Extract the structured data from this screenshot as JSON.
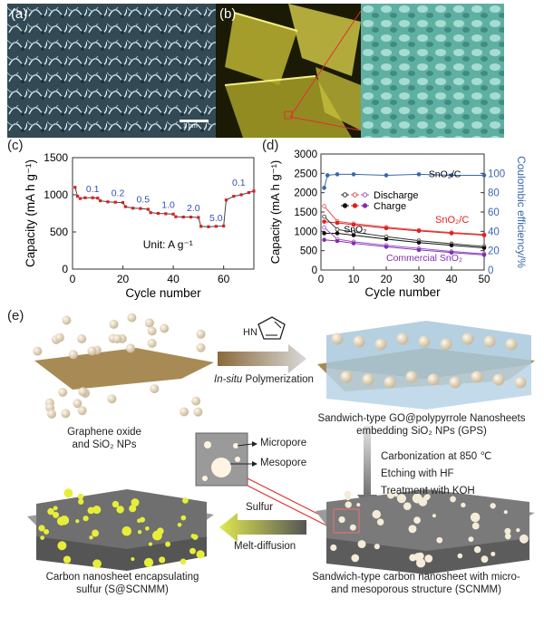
{
  "panels": {
    "a": {
      "label": "(a)",
      "scalebar": "1 μm"
    },
    "b": {
      "label": "(b)"
    },
    "c": {
      "label": "(c)"
    },
    "d": {
      "label": "(d)"
    },
    "e": {
      "label": "(e)"
    }
  },
  "chart_c": {
    "type": "line",
    "xlabel": "Cycle number",
    "ylabel": "Capacity (mA h g⁻¹)",
    "ylim": [
      0,
      1500
    ],
    "yticks": [
      0,
      500,
      1000,
      1500
    ],
    "xlim": [
      0,
      72
    ],
    "xticks": [
      0,
      20,
      40,
      60
    ],
    "unit_note": "Unit: A g⁻¹",
    "rate_labels": [
      "0.1",
      "0.2",
      "0.5",
      "1.0",
      "2.0",
      "5.0",
      "0.1"
    ]
  },
  "chart_d": {
    "type": "line",
    "xlabel": "Cycle number",
    "ylabel": "Capacity (mA h g⁻¹)",
    "y2label": "Coulombic efficiency/%",
    "ylim": [
      0,
      3000
    ],
    "yticks": [
      0,
      500,
      1000,
      1500,
      2000,
      2500,
      3000
    ],
    "y2lim": [
      0,
      120
    ],
    "y2ticks": [
      0,
      20,
      40,
      60,
      80,
      100
    ],
    "xlim": [
      0,
      50
    ],
    "xticks": [
      0,
      10,
      20,
      30,
      40,
      50
    ],
    "legend": [
      "Discharge",
      "Charge"
    ],
    "labels": {
      "sno2c_top": "SnO₂/C",
      "sno2c": "SnO₂/C",
      "sno2": "SnO₂",
      "commercial": "Commercial SnO₂"
    }
  },
  "chart_data": [
    {
      "type": "line",
      "title": "",
      "xlabel": "Cycle number",
      "ylabel": "Capacity (mA h g-1)",
      "ylim": [
        0,
        1500
      ],
      "series": [
        {
          "values": [
            [
              1,
              1100
            ],
            [
              2,
              980
            ],
            [
              3,
              950
            ],
            [
              5,
              960
            ],
            [
              8,
              960
            ],
            [
              10,
              955
            ],
            [
              11,
              920
            ],
            [
              14,
              905
            ],
            [
              17,
              900
            ],
            [
              20,
              895
            ],
            [
              21,
              840
            ],
            [
              24,
              820
            ],
            [
              27,
              815
            ],
            [
              30,
              805
            ],
            [
              31,
              760
            ],
            [
              34,
              750
            ],
            [
              37,
              745
            ],
            [
              40,
              740
            ],
            [
              41,
              705
            ],
            [
              44,
              700
            ],
            [
              47,
              700
            ],
            [
              50,
              695
            ],
            [
              51,
              575
            ],
            [
              54,
              570
            ],
            [
              57,
              575
            ],
            [
              60,
              580
            ],
            [
              61,
              930
            ],
            [
              64,
              980
            ],
            [
              67,
              1000
            ],
            [
              70,
              1030
            ],
            [
              72,
              1050
            ]
          ]
        }
      ],
      "annotations": [
        "0.1",
        "0.2",
        "0.5",
        "1.0",
        "2.0",
        "5.0",
        "0.1",
        "Unit: A g-1"
      ]
    },
    {
      "type": "line",
      "title": "",
      "xlabel": "Cycle number",
      "ylabel": "Capacity (mA h g-1)",
      "y2label": "Coulombic efficiency/%",
      "ylim": [
        0,
        3000
      ],
      "y2lim": [
        0,
        120
      ],
      "series": [
        {
          "name": "SnO2/C Discharge",
          "values": [
            [
              1,
              1650
            ],
            [
              5,
              1260
            ],
            [
              10,
              1200
            ],
            [
              20,
              1110
            ],
            [
              30,
              1030
            ],
            [
              40,
              970
            ],
            [
              50,
              920
            ]
          ]
        },
        {
          "name": "SnO2/C Charge",
          "values": [
            [
              1,
              1250
            ],
            [
              5,
              1220
            ],
            [
              10,
              1170
            ],
            [
              20,
              1080
            ],
            [
              30,
              1010
            ],
            [
              40,
              950
            ],
            [
              50,
              900
            ]
          ]
        },
        {
          "name": "SnO2 Discharge",
          "values": [
            [
              1,
              1380
            ],
            [
              5,
              1050
            ],
            [
              10,
              980
            ],
            [
              20,
              860
            ],
            [
              30,
              760
            ],
            [
              40,
              680
            ],
            [
              50,
              610
            ]
          ]
        },
        {
          "name": "SnO2 Charge",
          "values": [
            [
              1,
              950
            ],
            [
              5,
              950
            ],
            [
              10,
              900
            ],
            [
              20,
              800
            ],
            [
              30,
              710
            ],
            [
              40,
              640
            ],
            [
              50,
              570
            ]
          ]
        },
        {
          "name": "Commercial SnO2 Discharge",
          "values": [
            [
              1,
              1100
            ],
            [
              5,
              800
            ],
            [
              10,
              730
            ],
            [
              20,
              640
            ],
            [
              30,
              560
            ],
            [
              40,
              480
            ],
            [
              50,
              420
            ]
          ]
        },
        {
          "name": "Commercial SnO2 Charge",
          "values": [
            [
              1,
              780
            ],
            [
              5,
              750
            ],
            [
              10,
              690
            ],
            [
              20,
              600
            ],
            [
              30,
              520
            ],
            [
              40,
              450
            ],
            [
              50,
              390
            ]
          ]
        },
        {
          "name": "SnO2/C Coulombic efficiency",
          "axis": "y2",
          "values": [
            [
              1,
              85
            ],
            [
              2,
              98
            ],
            [
              5,
              99
            ],
            [
              10,
              99
            ],
            [
              20,
              98
            ],
            [
              30,
              99
            ],
            [
              40,
              98
            ],
            [
              50,
              98
            ]
          ]
        }
      ]
    }
  ],
  "scheme": {
    "go_label": "Graphene oxide\nand SiO₂ NPs",
    "pyrrole_nh": "HN",
    "polymerization_italic": "In-situ",
    "polymerization": " Polymerization",
    "gps_label": "Sandwich-type GO@polypyrrole Nanosheets\nembedding SiO₂ NPs (GPS)",
    "steps": [
      "Carbonization at 850 ℃",
      "Etching with HF",
      "Treatment with KOH"
    ],
    "micropore": "Micropore",
    "mesopore": "Mesopore",
    "sulfur": "Sulfur",
    "melt": "Melt-diffusion",
    "scnmm_label": "Sandwich-type carbon nanosheet with micro-\nand mesoporous structure (SCNMM)",
    "sscnmm_label": "Carbon nanosheet encapsulating\nsulfur (S@SCNMM)"
  }
}
